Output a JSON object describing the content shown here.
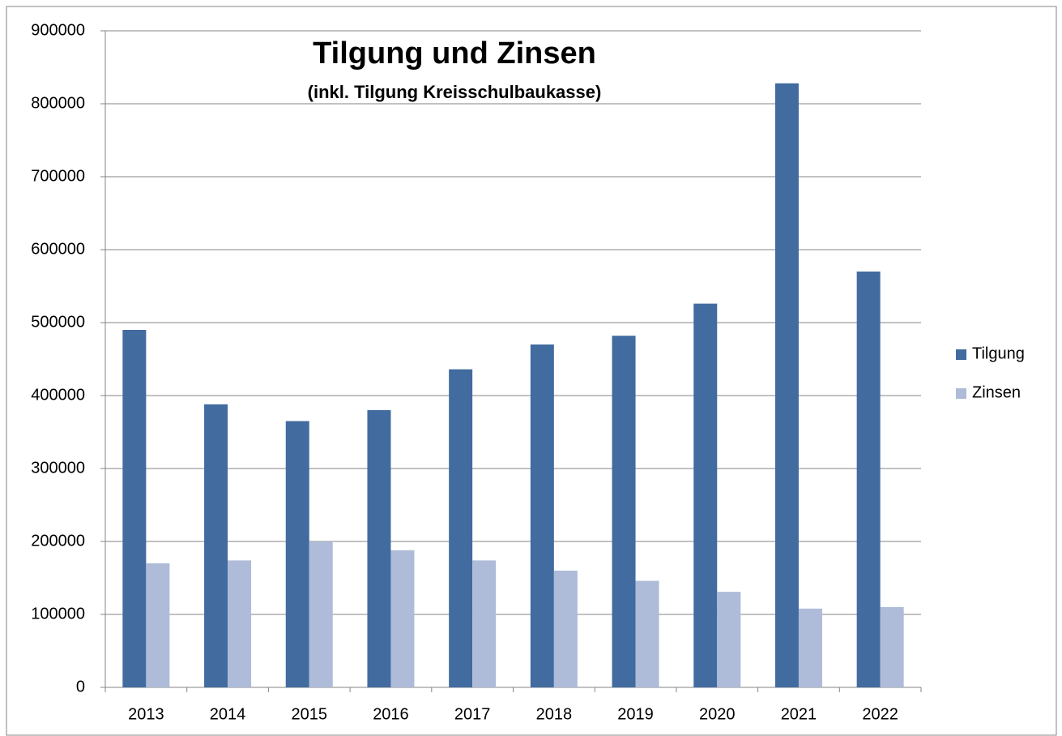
{
  "chart_data": {
    "type": "bar",
    "title": "Tilgung und Zinsen",
    "subtitle": "(inkl. Tilgung Kreisschulbaukasse)",
    "categories": [
      "2013",
      "2014",
      "2015",
      "2016",
      "2017",
      "2018",
      "2019",
      "2020",
      "2021",
      "2022"
    ],
    "series": [
      {
        "name": "Tilgung",
        "color": "#426b9f",
        "values": [
          490000,
          388000,
          365000,
          380000,
          436000,
          470000,
          482000,
          526000,
          828000,
          570000
        ]
      },
      {
        "name": "Zinsen",
        "color": "#aebbd9",
        "values": [
          170000,
          174000,
          200000,
          188000,
          174000,
          160000,
          146000,
          131000,
          108000,
          110000
        ]
      }
    ],
    "ylim": [
      0,
      900000
    ],
    "yticks": [
      0,
      100000,
      200000,
      300000,
      400000,
      500000,
      600000,
      700000,
      800000,
      900000
    ],
    "grid": true,
    "legend": "right"
  }
}
